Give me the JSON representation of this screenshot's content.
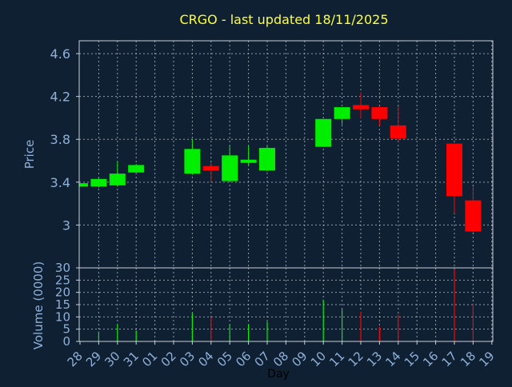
{
  "colors": {
    "background": "#0f2033",
    "title": "#ffff33",
    "axis_text": "#8fb0d8",
    "frame": "#c8d0da",
    "grid": "#c8d0da",
    "up": "#00ee00",
    "down": "#ff0000"
  },
  "chart_data": [
    {
      "type": "candlestick",
      "title": "CRGO - last updated 18/11/2025",
      "xlabel": "",
      "ylabel": "Price",
      "ylim": [
        2.6,
        4.72
      ],
      "yticks": [
        4.6,
        4.2,
        3.8,
        3.4,
        3
      ],
      "ytick_labels": [
        "4.6",
        "4.2",
        "3.8",
        "3.4",
        "3"
      ],
      "grid": true,
      "candles": [
        {
          "day": "28",
          "open": 3.36,
          "high": 3.39,
          "low": 3.36,
          "close": 3.39
        },
        {
          "day": "29",
          "open": 3.36,
          "high": 3.45,
          "low": 3.35,
          "close": 3.43
        },
        {
          "day": "30",
          "open": 3.37,
          "high": 3.59,
          "low": 3.36,
          "close": 3.48
        },
        {
          "day": "31",
          "open": 3.49,
          "high": 3.57,
          "low": 3.49,
          "close": 3.56
        },
        {
          "day": "03",
          "open": 3.48,
          "high": 3.8,
          "low": 3.47,
          "close": 3.71
        },
        {
          "day": "04",
          "open": 3.55,
          "high": 3.58,
          "low": 3.4,
          "close": 3.51
        },
        {
          "day": "05",
          "open": 3.41,
          "high": 3.74,
          "low": 3.41,
          "close": 3.65
        },
        {
          "day": "06",
          "open": 3.58,
          "high": 3.74,
          "low": 3.56,
          "close": 3.61
        },
        {
          "day": "07",
          "open": 3.51,
          "high": 3.74,
          "low": 3.5,
          "close": 3.72
        },
        {
          "day": "10",
          "open": 3.73,
          "high": 3.99,
          "low": 3.73,
          "close": 3.99
        },
        {
          "day": "11",
          "open": 3.99,
          "high": 4.1,
          "low": 3.94,
          "close": 4.1
        },
        {
          "day": "12",
          "open": 4.12,
          "high": 4.24,
          "low": 4.0,
          "close": 4.08
        },
        {
          "day": "13",
          "open": 4.1,
          "high": 4.11,
          "low": 3.93,
          "close": 3.99
        },
        {
          "day": "14",
          "open": 3.93,
          "high": 4.11,
          "low": 3.78,
          "close": 3.81
        },
        {
          "day": "17",
          "open": 3.76,
          "high": 3.76,
          "low": 3.11,
          "close": 3.27
        },
        {
          "day": "18",
          "open": 3.23,
          "high": 3.36,
          "low": 2.93,
          "close": 2.94
        }
      ]
    },
    {
      "type": "bar",
      "title": "",
      "xlabel": "Day",
      "ylabel": "Volume (0000)",
      "ylim": [
        0,
        30
      ],
      "yticks": [
        0,
        5,
        10,
        15,
        20,
        25,
        30
      ],
      "ytick_labels": [
        "0",
        "5",
        "10",
        "15",
        "20",
        "25",
        "30"
      ],
      "grid": true,
      "categories": [
        "28",
        "29",
        "30",
        "31",
        "01",
        "02",
        "03",
        "04",
        "05",
        "06",
        "07",
        "08",
        "09",
        "10",
        "11",
        "12",
        "13",
        "14",
        "15",
        "16",
        "17",
        "18",
        "19"
      ],
      "values": [
        0,
        4,
        7,
        4.5,
        0,
        0,
        11.5,
        10,
        7,
        7,
        8,
        0,
        0,
        17,
        13,
        12,
        6,
        11,
        0,
        0,
        29.5,
        15.5,
        0
      ],
      "directions": [
        "down",
        "up",
        "up",
        "up",
        "",
        "",
        "up",
        "down",
        "up",
        "up",
        "up",
        "",
        "",
        "up",
        "up",
        "down",
        "down",
        "down",
        "",
        "",
        "down",
        "down",
        ""
      ]
    }
  ]
}
